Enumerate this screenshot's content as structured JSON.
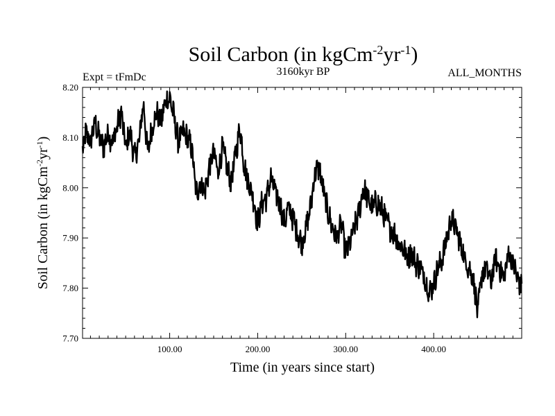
{
  "chart_data": {
    "type": "line",
    "title": "Soil Carbon (in kgCm",
    "title_sup1": "-2",
    "title_mid": "yr",
    "title_sup2": "-1",
    "title_end": ")",
    "subtitle_left": "Expt = tFmDc",
    "subtitle_center": "3160kyr BP",
    "subtitle_right": "ALL_MONTHS",
    "xlabel": "Time (in years since start)",
    "ylabel": "Soil Carbon (in kgCm",
    "ylabel_sup1": "-2",
    "ylabel_mid": "yr",
    "ylabel_sup2": "-1",
    "ylabel_end": ")",
    "xlim": [
      1,
      500
    ],
    "ylim": [
      7.7,
      8.2
    ],
    "x_ticks": [
      "100.00",
      "200.00",
      "300.00",
      "400.00"
    ],
    "x_tick_values": [
      100,
      200,
      300,
      400
    ],
    "y_ticks": [
      "7.70",
      "7.80",
      "7.90",
      "8.00",
      "8.10",
      "8.20"
    ],
    "y_tick_values": [
      7.7,
      7.8,
      7.9,
      8.0,
      8.1,
      8.2
    ],
    "line_color": "#000000",
    "series": [
      {
        "name": "Soil Carbon",
        "x": [
          1,
          5,
          10,
          15,
          20,
          25,
          30,
          35,
          40,
          45,
          50,
          55,
          60,
          65,
          70,
          75,
          80,
          85,
          90,
          95,
          100,
          105,
          110,
          115,
          120,
          125,
          130,
          135,
          140,
          145,
          150,
          155,
          160,
          165,
          170,
          175,
          180,
          185,
          190,
          195,
          200,
          205,
          210,
          215,
          220,
          225,
          230,
          235,
          240,
          245,
          250,
          255,
          260,
          265,
          270,
          275,
          280,
          285,
          290,
          295,
          300,
          305,
          310,
          315,
          320,
          325,
          330,
          335,
          340,
          345,
          350,
          355,
          360,
          365,
          370,
          375,
          380,
          385,
          390,
          395,
          400,
          405,
          410,
          415,
          420,
          425,
          430,
          435,
          440,
          445,
          450,
          455,
          460,
          465,
          470,
          475,
          480,
          485,
          490,
          495,
          500
        ],
        "values": [
          8.07,
          8.11,
          8.09,
          8.13,
          8.1,
          8.08,
          8.11,
          8.09,
          8.12,
          8.15,
          8.08,
          8.11,
          8.06,
          8.09,
          8.17,
          8.07,
          8.12,
          8.15,
          8.13,
          8.17,
          8.18,
          8.14,
          8.09,
          8.11,
          8.1,
          8.08,
          7.99,
          8.01,
          7.99,
          8.04,
          8.07,
          8.03,
          8.08,
          8.04,
          8.01,
          8.07,
          8.12,
          8.04,
          8.01,
          7.98,
          7.93,
          7.97,
          7.98,
          8.02,
          7.99,
          7.97,
          7.93,
          7.96,
          7.94,
          7.91,
          7.89,
          7.92,
          7.96,
          8.03,
          8.04,
          7.99,
          7.95,
          7.92,
          7.9,
          7.93,
          7.87,
          7.89,
          7.92,
          7.95,
          8.0,
          7.98,
          7.96,
          7.97,
          7.96,
          7.94,
          7.92,
          7.91,
          7.89,
          7.88,
          7.86,
          7.87,
          7.85,
          7.84,
          7.82,
          7.79,
          7.81,
          7.84,
          7.86,
          7.9,
          7.94,
          7.92,
          7.89,
          7.86,
          7.84,
          7.82,
          7.75,
          7.83,
          7.84,
          7.81,
          7.86,
          7.84,
          7.82,
          7.87,
          7.85,
          7.82,
          7.8
        ]
      }
    ]
  }
}
